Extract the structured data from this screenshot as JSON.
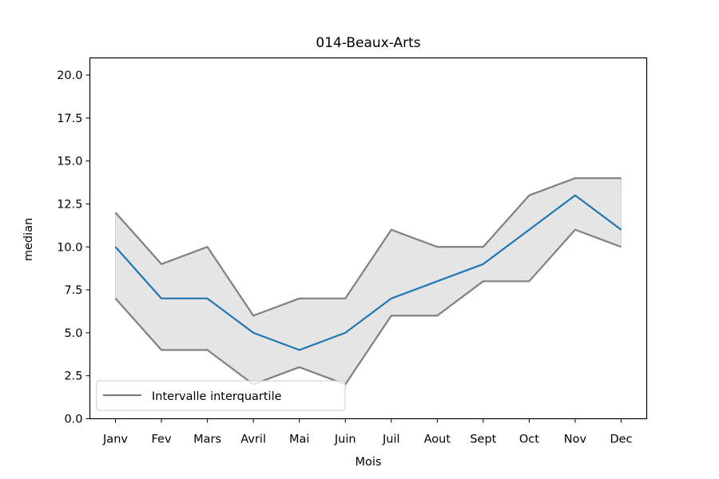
{
  "chart_data": {
    "type": "line",
    "title": "014-Beaux-Arts",
    "xlabel": "Mois",
    "ylabel": "median",
    "ylim": [
      0,
      21
    ],
    "yticks": [
      "0.0",
      "2.5",
      "5.0",
      "7.5",
      "10.0",
      "12.5",
      "15.0",
      "17.5",
      "20.0"
    ],
    "categories": [
      "Janv",
      "Fev",
      "Mars",
      "Avril",
      "Mai",
      "Juin",
      "Juil",
      "Aout",
      "Sept",
      "Oct",
      "Nov",
      "Dec"
    ],
    "series": [
      {
        "key": "median",
        "values": [
          10,
          7,
          7,
          5,
          4,
          5,
          7,
          8,
          9,
          11,
          13,
          11
        ],
        "color": "#1f77b4"
      },
      {
        "key": "q3",
        "values": [
          12,
          9,
          10,
          6,
          7,
          7,
          11,
          10,
          10,
          13,
          14,
          14
        ],
        "color": "#808080"
      },
      {
        "key": "q1",
        "values": [
          7,
          4,
          4,
          2,
          3,
          2,
          6,
          6,
          8,
          8,
          11,
          10
        ],
        "color": "#808080"
      }
    ],
    "band_fill": "#e5e5e5",
    "legend": {
      "label": "Intervalle interquartile",
      "location": "lower-left",
      "color": "#808080"
    },
    "grid": false
  }
}
